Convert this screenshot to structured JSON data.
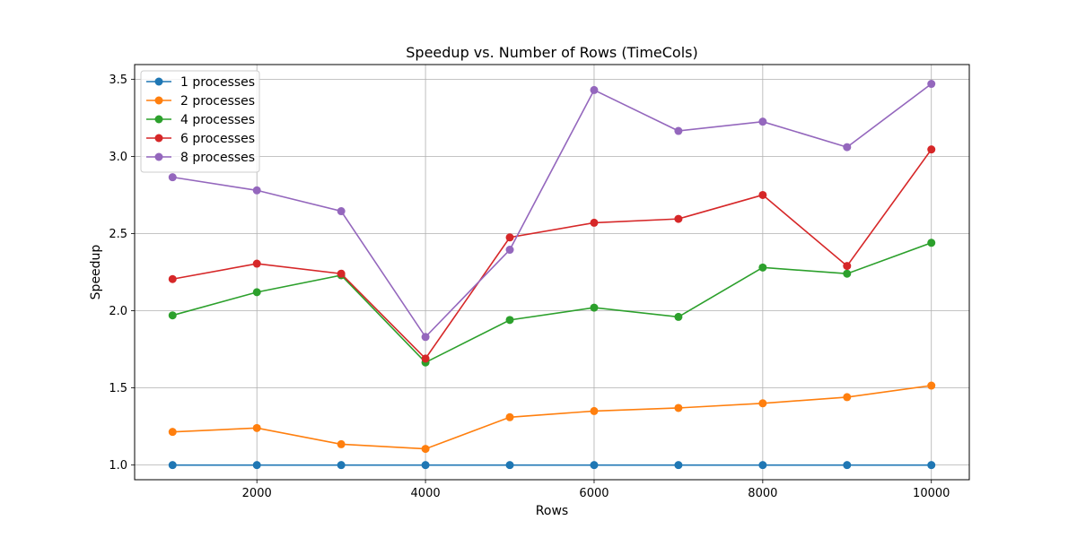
{
  "chart_data": {
    "type": "line",
    "title": "Speedup vs. Number of Rows (TimeCols)",
    "xlabel": "Rows",
    "ylabel": "Speedup",
    "xlim": [
      550,
      10450
    ],
    "ylim": [
      0.905,
      3.595
    ],
    "xticks": [
      2000,
      4000,
      6000,
      8000,
      10000
    ],
    "xtick_labels": [
      "2000",
      "4000",
      "6000",
      "8000",
      "10000"
    ],
    "yticks": [
      1.0,
      1.5,
      2.0,
      2.5,
      3.0,
      3.5
    ],
    "ytick_labels": [
      "1.0",
      "1.5",
      "2.0",
      "2.5",
      "3.0",
      "3.5"
    ],
    "grid": true,
    "legend_position": "top-left",
    "x": [
      1000,
      2000,
      3000,
      4000,
      5000,
      6000,
      7000,
      8000,
      9000,
      10000
    ],
    "series": [
      {
        "name": "1 processes",
        "color": "#1f77b4",
        "values": [
          1.0,
          1.0,
          1.0,
          1.0,
          1.0,
          1.0,
          1.0,
          1.0,
          1.0,
          1.0
        ]
      },
      {
        "name": "2 processes",
        "color": "#ff7f0e",
        "values": [
          1.215,
          1.24,
          1.135,
          1.105,
          1.31,
          1.35,
          1.37,
          1.4,
          1.44,
          1.515
        ]
      },
      {
        "name": "4 processes",
        "color": "#2ca02c",
        "values": [
          1.97,
          2.12,
          2.23,
          1.665,
          1.94,
          2.02,
          1.96,
          2.28,
          2.24,
          2.44
        ]
      },
      {
        "name": "6 processes",
        "color": "#d62728",
        "values": [
          2.205,
          2.305,
          2.24,
          1.69,
          2.475,
          2.57,
          2.595,
          2.75,
          2.29,
          3.045
        ]
      },
      {
        "name": "8 processes",
        "color": "#9467bd",
        "values": [
          2.865,
          2.78,
          2.645,
          1.83,
          2.395,
          3.43,
          3.165,
          3.225,
          3.06,
          3.47
        ]
      }
    ]
  }
}
